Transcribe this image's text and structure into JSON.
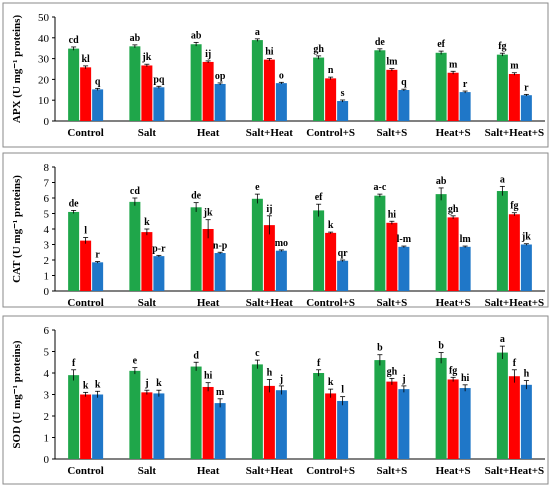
{
  "colors": {
    "series1": "#1fa64a",
    "series2": "#ff0000",
    "series3": "#1f77c8"
  },
  "chart_data": [
    {
      "type": "bar",
      "ylabel": "APX (U mg⁻¹ proteins)",
      "ylim": [
        0,
        50
      ],
      "yticks": [
        0,
        10,
        20,
        30,
        40,
        50
      ],
      "grid": false,
      "categories": [
        "Control",
        "Salt",
        "Heat",
        "Salt+Heat",
        "Control+S",
        "Salt+S",
        "Heat+S",
        "Salt+Heat+S"
      ],
      "series": [
        {
          "values": [
            34.8,
            35.9,
            36.9,
            38.9,
            30.5,
            34.0,
            32.8,
            31.9
          ],
          "errors": [
            0.8,
            0.7,
            0.9,
            0.6,
            0.8,
            0.7,
            0.8,
            0.7
          ],
          "labels": [
            "cd",
            "ab",
            "ab",
            "a",
            "gh",
            "de",
            "ef",
            "fg"
          ]
        },
        {
          "values": [
            25.8,
            26.7,
            28.4,
            29.5,
            20.5,
            24.6,
            23.2,
            22.6
          ],
          "errors": [
            0.7,
            0.6,
            0.5,
            0.6,
            0.6,
            0.6,
            0.7,
            0.6
          ],
          "labels": [
            "kl",
            "jk",
            "ij",
            "hi",
            "n",
            "lm",
            "m",
            "m"
          ]
        },
        {
          "values": [
            15.2,
            16.2,
            17.8,
            18.2,
            9.6,
            14.9,
            13.9,
            12.4
          ],
          "errors": [
            0.5,
            0.5,
            0.5,
            0.4,
            0.5,
            0.4,
            0.5,
            0.4
          ],
          "labels": [
            "q",
            "pq",
            "op",
            "o",
            "s",
            "q",
            "r",
            "r"
          ]
        }
      ]
    },
    {
      "type": "bar",
      "ylabel": "CAT (U mg⁻¹ proteins)",
      "ylim": [
        0,
        8
      ],
      "yticks": [
        0,
        1,
        2,
        3,
        4,
        5,
        6,
        7,
        8
      ],
      "grid": false,
      "categories": [
        "Control",
        "Salt",
        "Heat",
        "Salt+Heat",
        "Control+S",
        "Salt+S",
        "Heat+S",
        "Salt+Heat+S"
      ],
      "series": [
        {
          "values": [
            5.1,
            5.75,
            5.4,
            5.95,
            5.2,
            6.15,
            6.25,
            6.45
          ],
          "errors": [
            0.1,
            0.25,
            0.3,
            0.3,
            0.4,
            0.1,
            0.4,
            0.3
          ],
          "labels": [
            "de",
            "cd",
            "de",
            "e",
            "ef",
            "a-c",
            "ab",
            "a"
          ]
        },
        {
          "values": [
            3.25,
            3.8,
            4.0,
            4.25,
            3.75,
            4.4,
            4.75,
            4.95
          ],
          "errors": [
            0.2,
            0.2,
            0.6,
            0.6,
            0.05,
            0.1,
            0.1,
            0.1
          ],
          "labels": [
            "l",
            "k",
            "jk",
            "ij",
            "k",
            "hi",
            "gh",
            "fg"
          ]
        },
        {
          "values": [
            1.85,
            2.25,
            2.45,
            2.6,
            1.95,
            2.85,
            2.85,
            3.0
          ],
          "errors": [
            0.05,
            0.05,
            0.05,
            0.05,
            0.05,
            0.05,
            0.05,
            0.05
          ],
          "labels": [
            "r",
            "p-r",
            "n-p",
            "mo",
            "qr",
            "l-m",
            "lm",
            "jk"
          ]
        }
      ]
    },
    {
      "type": "bar",
      "ylabel": "SOD (U mg⁻¹ proteins)",
      "ylim": [
        0,
        6
      ],
      "yticks": [
        0,
        1,
        2,
        3,
        4,
        5,
        6
      ],
      "grid": false,
      "categories": [
        "Control",
        "Salt",
        "Heat",
        "Salt+Heat",
        "Control+S",
        "Salt+S",
        "Heat+S",
        "Salt+Heat+S"
      ],
      "series": [
        {
          "values": [
            3.9,
            4.1,
            4.3,
            4.4,
            4.0,
            4.6,
            4.7,
            4.95
          ],
          "errors": [
            0.25,
            0.15,
            0.2,
            0.2,
            0.15,
            0.25,
            0.25,
            0.3
          ],
          "labels": [
            "f",
            "e",
            "d",
            "c",
            "f",
            "b",
            "b",
            "a"
          ]
        },
        {
          "values": [
            3.0,
            3.1,
            3.35,
            3.4,
            3.05,
            3.6,
            3.7,
            3.85
          ],
          "errors": [
            0.1,
            0.1,
            0.2,
            0.3,
            0.2,
            0.15,
            0.1,
            0.3
          ],
          "labels": [
            "k",
            "j",
            "hi",
            "h",
            "k",
            "gh",
            "fg",
            "f"
          ]
        },
        {
          "values": [
            3.0,
            3.05,
            2.6,
            3.2,
            2.7,
            3.25,
            3.3,
            3.45
          ],
          "errors": [
            0.15,
            0.15,
            0.2,
            0.2,
            0.2,
            0.15,
            0.15,
            0.2
          ],
          "labels": [
            "k",
            "k",
            "m",
            "j",
            "l",
            "j",
            "hi",
            "h"
          ]
        }
      ]
    }
  ]
}
